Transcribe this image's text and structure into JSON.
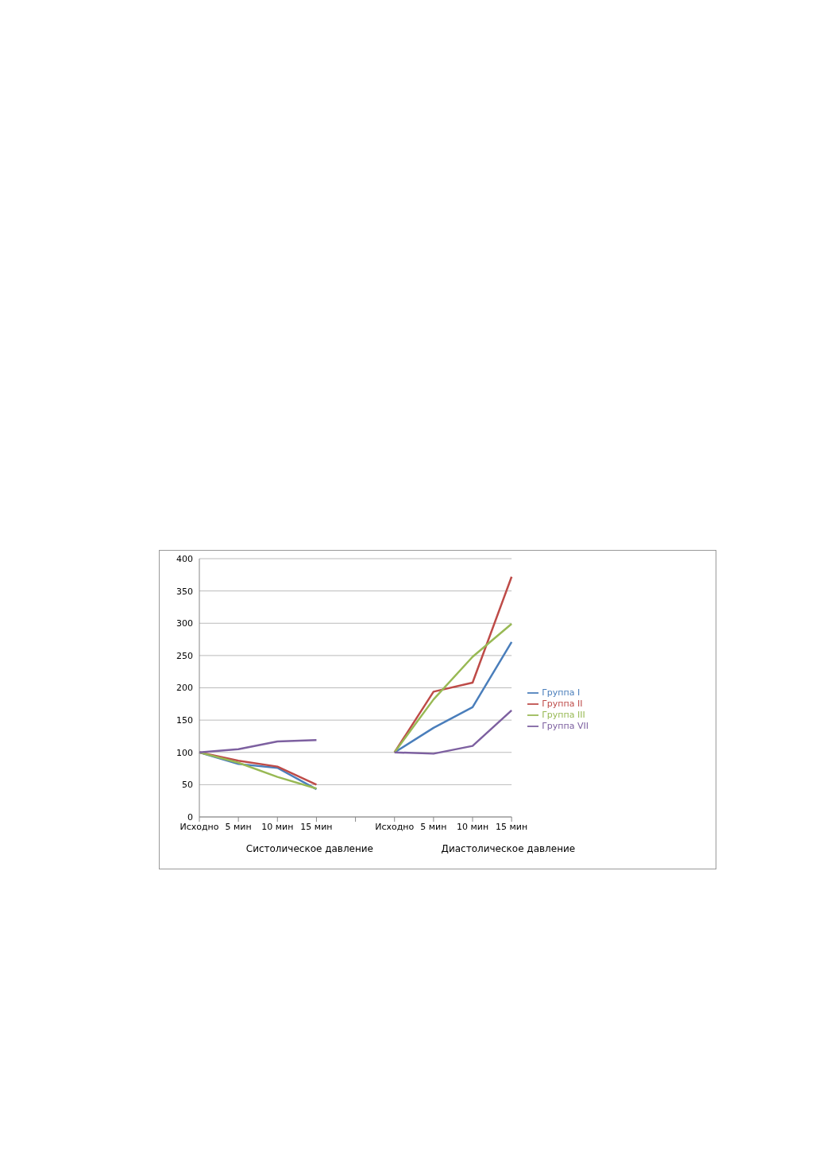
{
  "chart_data": {
    "type": "line",
    "categories": [
      "Исходно",
      "5 мин",
      "10 мин",
      "15 мин",
      null,
      "Исходно",
      "5 мин",
      "10 мин",
      "15 мин"
    ],
    "series": [
      {
        "name": "Группа I",
        "color": "#4a7ebb",
        "values": [
          100,
          82,
          76,
          43,
          null,
          100,
          138,
          170,
          271
        ]
      },
      {
        "name": "Группа II",
        "color": "#be4b48",
        "values": [
          100,
          87,
          78,
          50,
          null,
          100,
          194,
          208,
          372
        ]
      },
      {
        "name": "Группа III",
        "color": "#98b954",
        "values": [
          100,
          84,
          62,
          44,
          null,
          100,
          182,
          248,
          299
        ]
      },
      {
        "name": "Группа VII",
        "color": "#7d60a0",
        "values": [
          100,
          105,
          117,
          119,
          null,
          100,
          98,
          110,
          165
        ]
      }
    ],
    "annotations": [
      "Систолическое давление",
      "Диастолическое давление"
    ],
    "ylim": [
      0,
      400
    ],
    "yticks": [
      0,
      50,
      100,
      150,
      200,
      250,
      300,
      350,
      400
    ],
    "grid": "y",
    "legend": "right",
    "marker": "none",
    "line_style": "solid"
  }
}
